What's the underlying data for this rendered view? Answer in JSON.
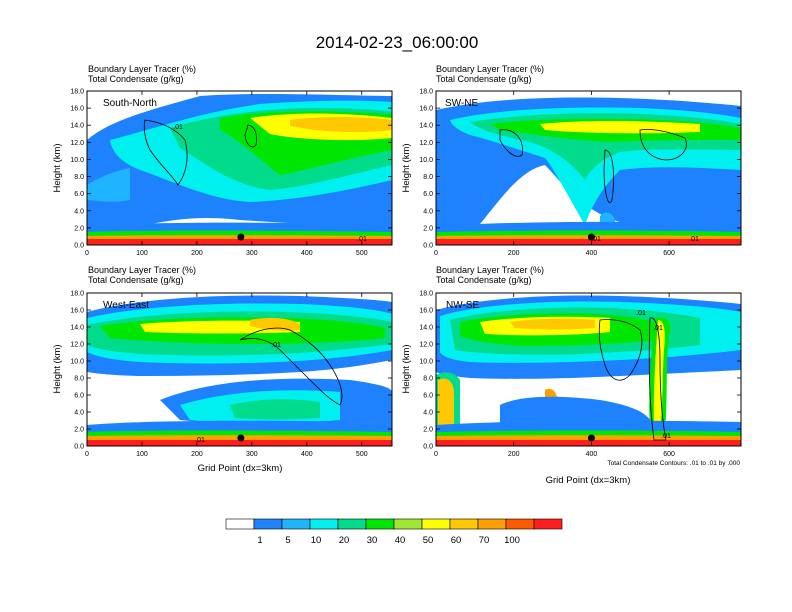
{
  "title": "2014-02-23_06:00:00",
  "panel_titles": {
    "line1": "Boundary Layer Tracer   (%)",
    "line2": "Total Condensate   (g/kg)"
  },
  "axis_labels": {
    "y": "Height (km)",
    "x": "Grid Point (dx=3km)"
  },
  "contour_note": "Total Condensate Contours: .01 to .01 by .000",
  "chart_data": [
    {
      "type": "heatmap",
      "panel": "South-North",
      "ylabel": "Height (km)",
      "xlabel": "",
      "xlim": [
        0,
        555
      ],
      "ylim": [
        0,
        18
      ],
      "x_ticks": [
        "0",
        "100",
        "200",
        "300",
        "400",
        "500"
      ],
      "y_ticks": [
        "0.0",
        "2.0",
        "4.0",
        "6.0",
        "8.0",
        "10.0",
        "12.0",
        "14.0",
        "16.0",
        "18.0"
      ],
      "contour_labels": [
        ".01",
        ".01"
      ],
      "surface_marker_x": 280
    },
    {
      "type": "heatmap",
      "panel": "SW-NE",
      "ylabel": "Height (km)",
      "xlabel": "",
      "xlim": [
        0,
        785
      ],
      "ylim": [
        0,
        18
      ],
      "x_ticks": [
        "0",
        "200",
        "400",
        "600"
      ],
      "y_ticks": [
        "0.0",
        "2.0",
        "4.0",
        "6.0",
        "8.0",
        "10.0",
        "12.0",
        "14.0",
        "16.0",
        "18.0"
      ],
      "contour_labels": [
        ".01",
        ".01"
      ],
      "surface_marker_x": 400
    },
    {
      "type": "heatmap",
      "panel": "West-East",
      "ylabel": "Height (km)",
      "xlabel": "Grid Point (dx=3km)",
      "xlim": [
        0,
        555
      ],
      "ylim": [
        0,
        18
      ],
      "x_ticks": [
        "0",
        "100",
        "200",
        "300",
        "400",
        "500"
      ],
      "y_ticks": [
        "0.0",
        "2.0",
        "4.0",
        "6.0",
        "8.0",
        "10.0",
        "12.0",
        "14.0",
        "16.0",
        "18.0"
      ],
      "contour_labels": [
        ".01",
        ".01"
      ],
      "surface_marker_x": 280
    },
    {
      "type": "heatmap",
      "panel": "NW-SE",
      "ylabel": "Height (km)",
      "xlabel": "Grid Point (dx=3km)",
      "xlim": [
        0,
        785
      ],
      "ylim": [
        0,
        18
      ],
      "x_ticks": [
        "0",
        "200",
        "400",
        "600"
      ],
      "y_ticks": [
        "0.0",
        "2.0",
        "4.0",
        "6.0",
        "8.0",
        "10.0",
        "12.0",
        "14.0",
        "16.0",
        "18.0"
      ],
      "contour_labels": [
        ".01",
        ".01",
        ".01"
      ],
      "surface_marker_x": 400
    }
  ],
  "colorbar": {
    "colors": [
      "#ffffff",
      "#1e82ff",
      "#1eb4ff",
      "#00f0f0",
      "#00dc8c",
      "#00e600",
      "#a0e632",
      "#ffff00",
      "#ffc800",
      "#ffa000",
      "#ff5a00",
      "#ff1e1e"
    ],
    "labels": [
      "1",
      "5",
      "10",
      "20",
      "30",
      "40",
      "50",
      "60",
      "70",
      "100"
    ]
  }
}
